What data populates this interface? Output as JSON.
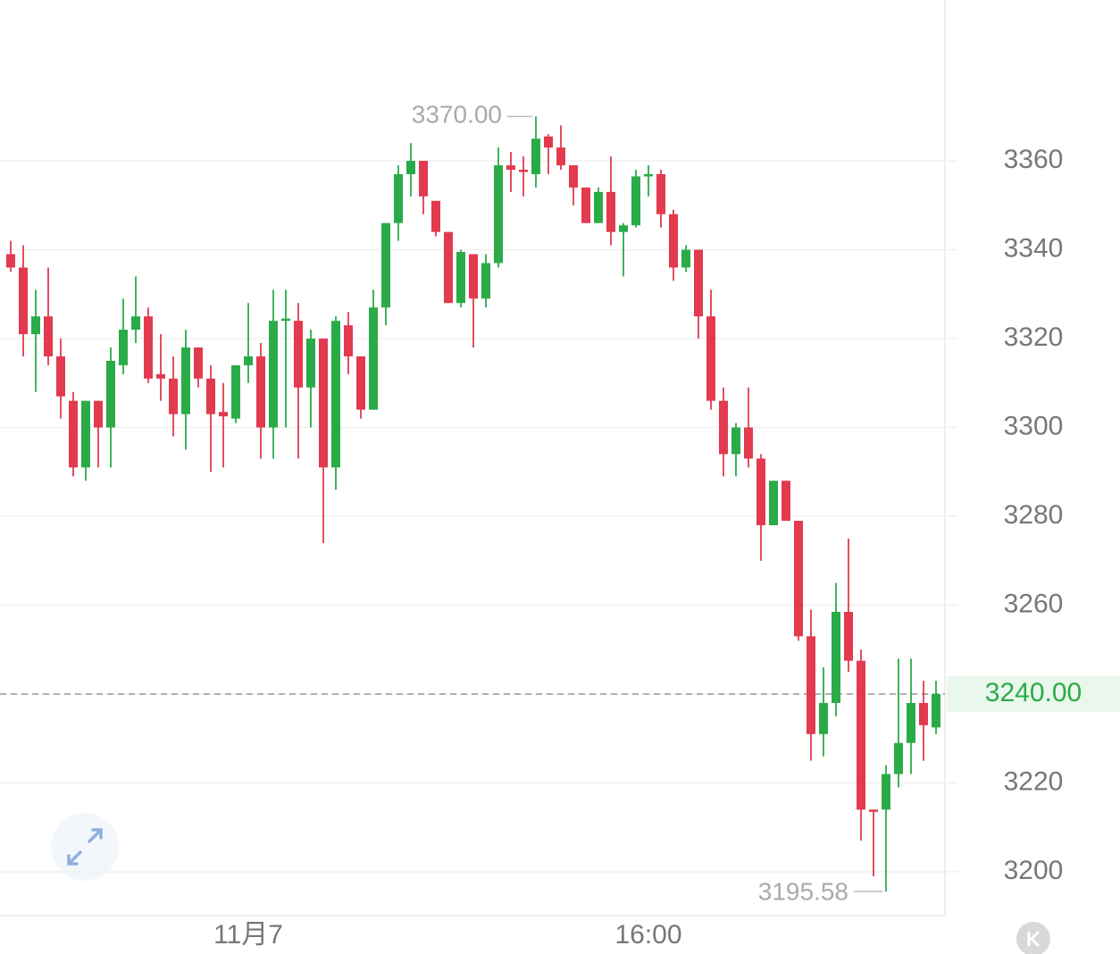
{
  "chart_data": {
    "type": "candlestick",
    "categories": [
      null,
      null,
      null,
      null,
      null,
      null,
      null,
      null,
      null,
      null,
      null,
      null,
      null,
      null,
      null,
      null,
      null,
      null,
      null,
      "11月7",
      null,
      null,
      null,
      null,
      null,
      null,
      null,
      null,
      null,
      null,
      null,
      null,
      null,
      null,
      null,
      null,
      null,
      null,
      null,
      null,
      null,
      null,
      null,
      null,
      null,
      null,
      null,
      null,
      null,
      null,
      null,
      "16:00",
      null,
      null,
      null,
      null,
      null,
      null,
      null,
      null,
      null,
      null,
      null,
      null,
      null,
      null,
      null,
      null,
      null,
      null,
      null,
      null,
      null,
      null,
      null
    ],
    "open": [
      3339,
      3336,
      3321,
      3325,
      3316,
      3306,
      3291,
      3306,
      3300,
      3314,
      3322,
      3325,
      3312,
      3311,
      3303,
      3318,
      3311,
      3303.5,
      3302,
      3314,
      3316,
      3300,
      3324,
      3324,
      3309,
      3320,
      3291,
      3323,
      3316,
      3304,
      3327,
      3346,
      3357,
      3360,
      3351,
      3344,
      3328,
      3339,
      3329,
      3337,
      3359,
      3358,
      3357,
      3365.5,
      3363,
      3359,
      3354,
      3346,
      3353,
      3344,
      3345.5,
      3356.5,
      3357,
      3348,
      3336,
      3340,
      3325,
      3306,
      3294,
      3300,
      3293,
      3278,
      3288,
      3279,
      3253,
      3231,
      3238,
      3258.5,
      3247.5,
      3214,
      3214,
      3222,
      3229,
      3238,
      3232.5
    ],
    "high": [
      3342,
      3341,
      3331,
      3336,
      3320,
      3308,
      3306,
      3306,
      3318,
      3329,
      3334,
      3327,
      3321,
      3316,
      3322,
      3318,
      3314,
      3310,
      3314,
      3328,
      3319,
      3331,
      3331,
      3328,
      3322,
      3320,
      3325,
      3326,
      3316,
      3331,
      3346,
      3359,
      3364,
      3360,
      3351,
      3344,
      3340,
      3339,
      3339,
      3363,
      3362,
      3361,
      3370,
      3366,
      3368,
      3359,
      3354,
      3354,
      3361,
      3346,
      3358,
      3359,
      3358,
      3349,
      3341,
      3340,
      3331,
      3309,
      3301,
      3309,
      3294,
      3288,
      3288,
      3279,
      3259,
      3246,
      3265,
      3275,
      3250,
      3214,
      3224,
      3248,
      3248,
      3243,
      3243
    ],
    "low": [
      3335,
      3316,
      3308,
      3314,
      3302,
      3289,
      3288,
      3291,
      3291,
      3312,
      3319,
      3310,
      3306,
      3298,
      3295,
      3309,
      3290,
      3291,
      3301,
      3310,
      3293,
      3293,
      3300,
      3293,
      3300,
      3274,
      3286,
      3312,
      3302,
      3304,
      3323,
      3342,
      3352,
      3348,
      3343,
      3328,
      3327,
      3318,
      3327,
      3336,
      3353,
      3352,
      3354,
      3357,
      3358,
      3350,
      3346,
      3346,
      3341,
      3334,
      3345,
      3352,
      3345,
      3333,
      3335,
      3320,
      3304,
      3289,
      3289,
      3291,
      3270,
      3278,
      3279,
      3252,
      3225,
      3226,
      3235,
      3245,
      3207,
      3199,
      3195.58,
      3219,
      3222,
      3225,
      3231
    ],
    "close": [
      3336,
      3321,
      3325,
      3316,
      3307,
      3291,
      3306,
      3300,
      3315,
      3322,
      3325,
      3311,
      3311,
      3303,
      3318,
      3311,
      3303,
      3302.5,
      3314,
      3316,
      3300,
      3324,
      3324.5,
      3309,
      3320,
      3291,
      3324,
      3316,
      3304,
      3327,
      3346,
      3357,
      3360,
      3352,
      3344,
      3328,
      3339.5,
      3329,
      3337,
      3359,
      3358,
      3357.5,
      3365,
      3363,
      3359,
      3354,
      3346,
      3353,
      3344,
      3345.5,
      3356.5,
      3357,
      3348,
      3336,
      3340,
      3325,
      3306,
      3294,
      3300,
      3293,
      3278,
      3288,
      3279,
      3253,
      3231,
      3238,
      3258.5,
      3247.5,
      3214,
      3213.5,
      3222,
      3229,
      3238,
      3233,
      3240
    ],
    "up_color": "#2aab48",
    "down_color": "#e23a4e",
    "ylim": [
      3190.15,
      3396.2
    ],
    "yticks": [
      3200,
      3220,
      3240,
      3260,
      3280,
      3300,
      3320,
      3340,
      3360
    ],
    "grid": true,
    "high_label": {
      "value": 3370,
      "label": "3370.00"
    },
    "low_label": {
      "value": 3195.58,
      "label": "3195.58"
    },
    "last_price": {
      "value": 3240,
      "label": "3240.00",
      "color": "#2aab48"
    }
  }
}
